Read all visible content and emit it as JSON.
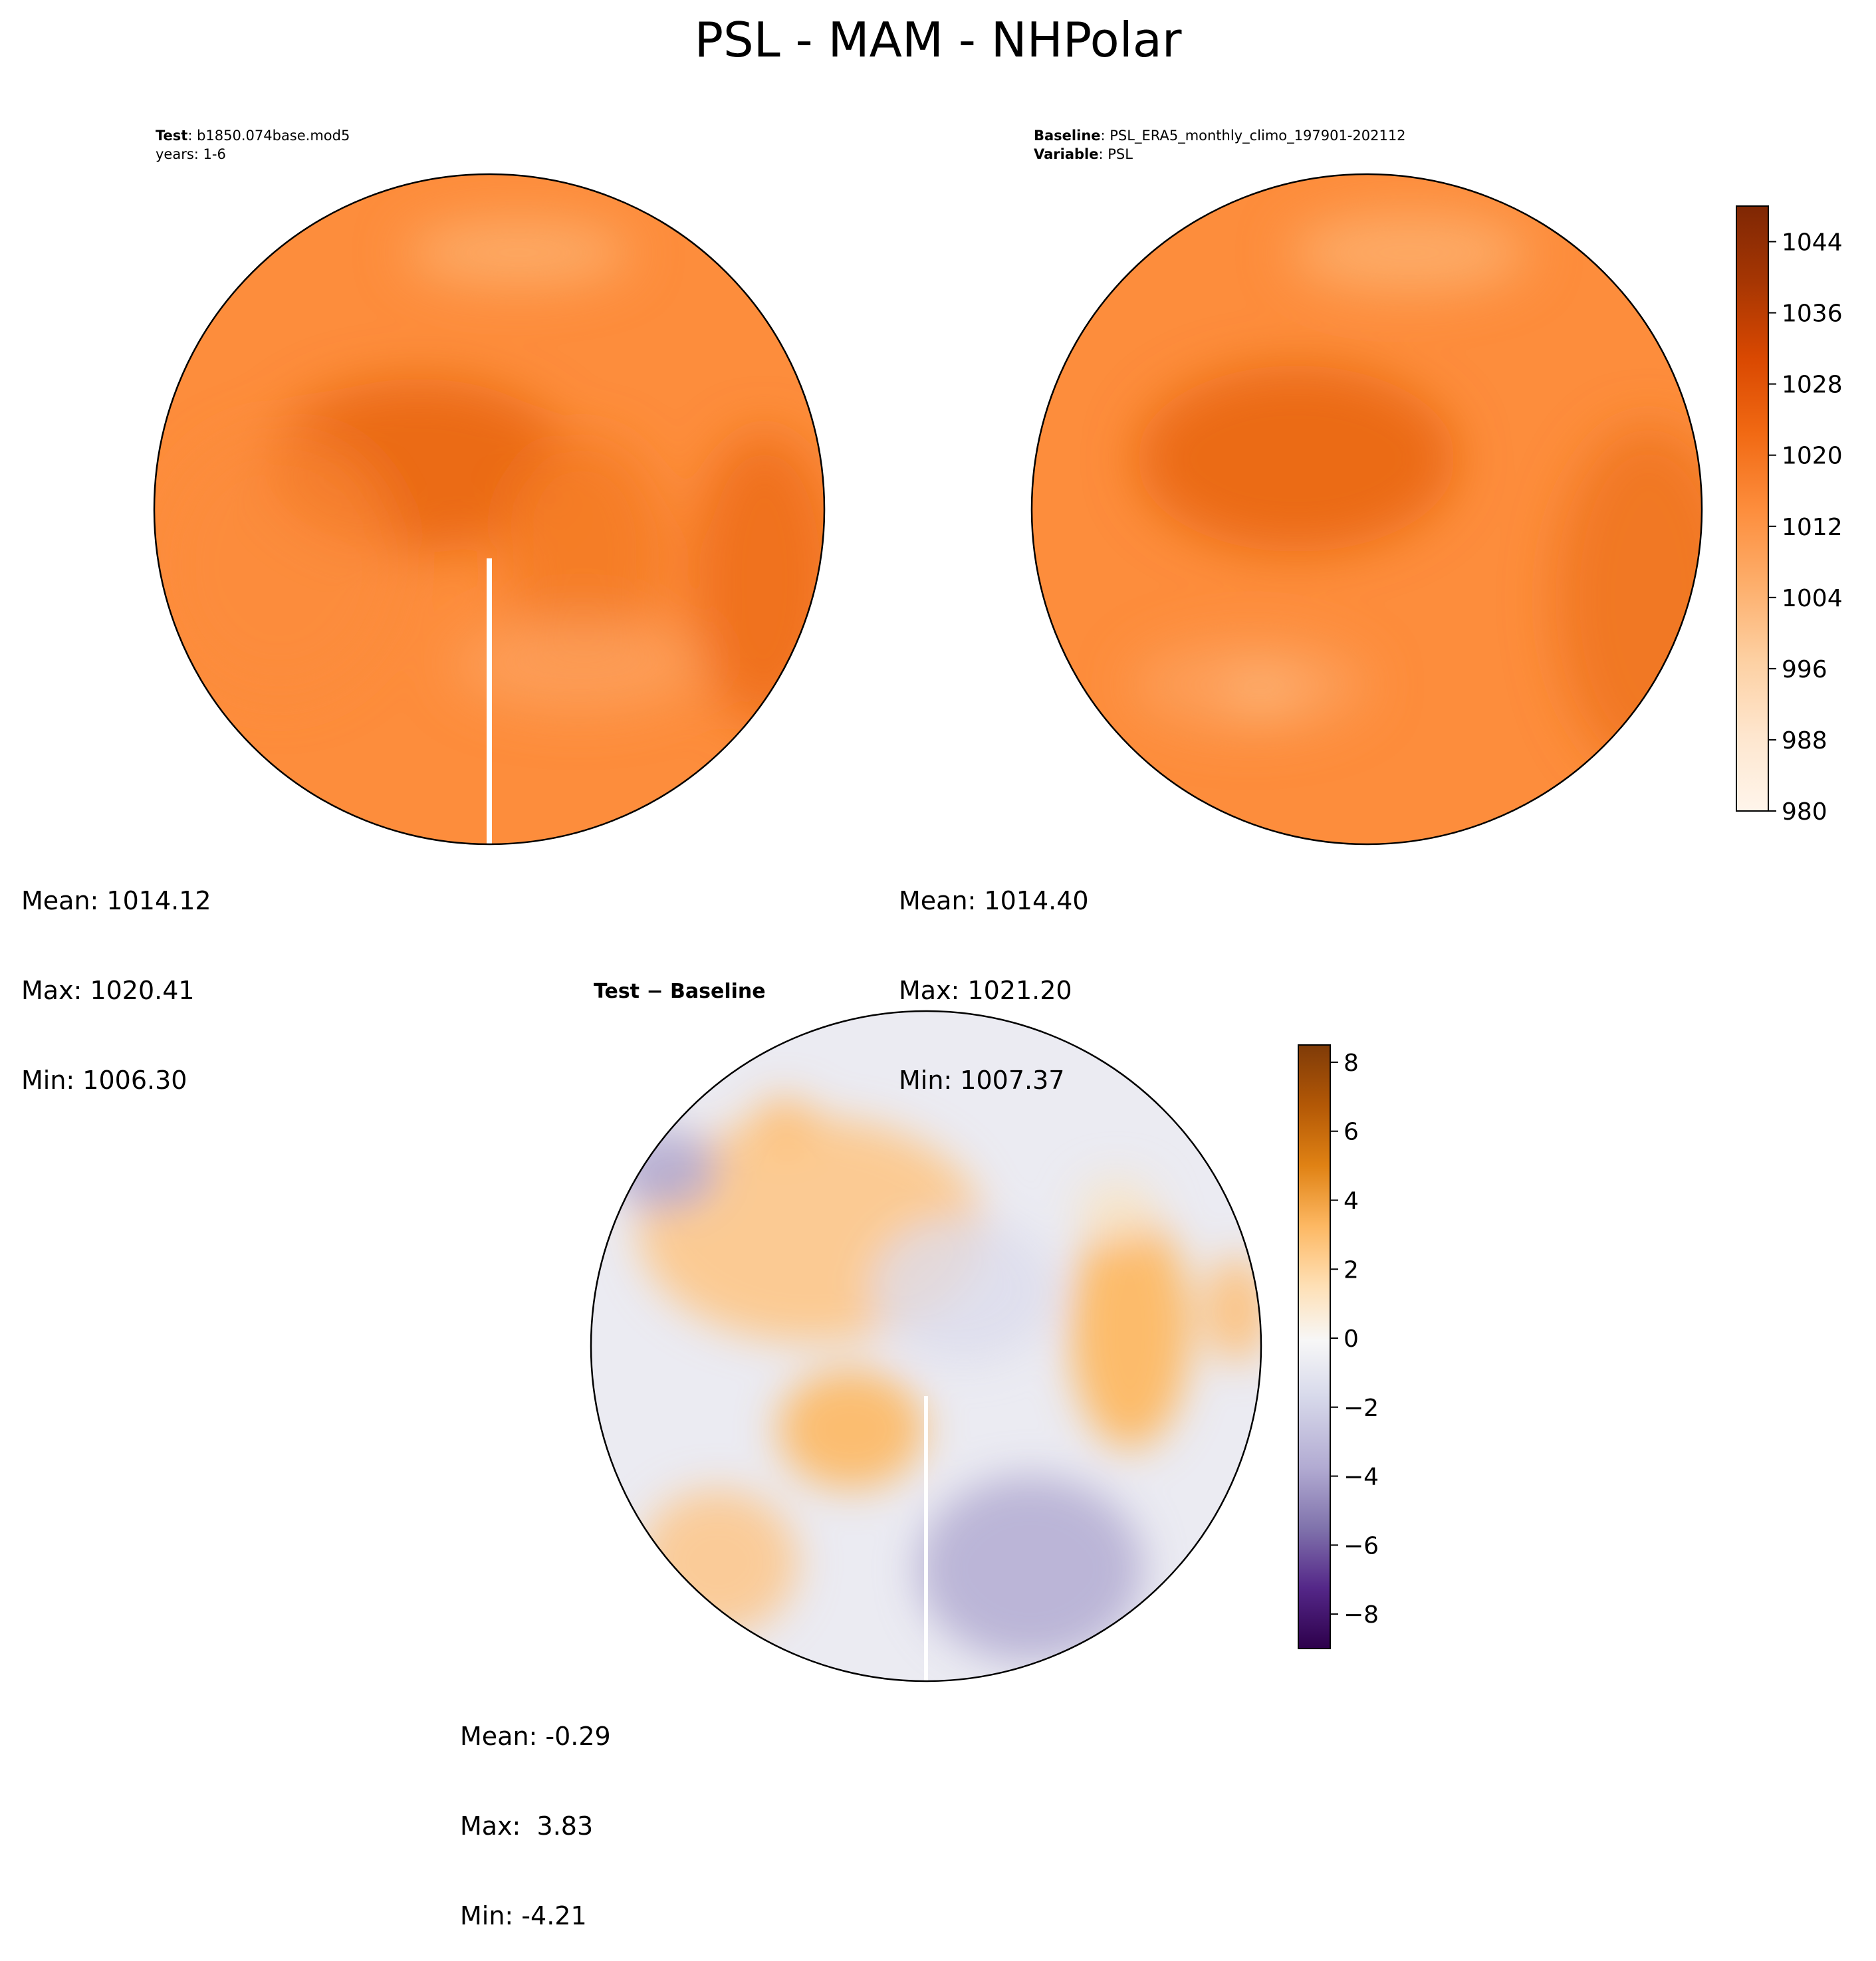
{
  "figure": {
    "title": "PSL - MAM - NHPolar"
  },
  "colors": {
    "seq_cmap": [
      "#fff5eb",
      "#fee6ce",
      "#fdd0a2",
      "#fdae6b",
      "#fd8d3c",
      "#f16913",
      "#d94801",
      "#a63603",
      "#7f2704"
    ],
    "div_cmap": [
      "#2d004b",
      "#542788",
      "#8073ac",
      "#b2abd2",
      "#d8daeb",
      "#f7f7f7",
      "#fee0b6",
      "#fdb863",
      "#e08214",
      "#b35806",
      "#7f3b08"
    ],
    "coastline": "#000000"
  },
  "panels": {
    "test": {
      "label_bold": "Test",
      "label_value": ": b1850.074base.mod5",
      "line2": "years: 1-6",
      "mean": "Mean: 1014.12",
      "max": "Max: 1020.41",
      "min": "Min: 1006.30"
    },
    "baseline": {
      "label_bold": "Baseline",
      "label_value": ": PSL_ERA5_monthly_climo_197901-202112",
      "line2_bold": "Variable",
      "line2_value": ": PSL",
      "mean": "Mean: 1014.40",
      "max": "Max: 1021.20",
      "min": "Min: 1007.37"
    },
    "diff": {
      "title": "Test − Baseline",
      "mean": "Mean: -0.29",
      "max": "Max:  3.83",
      "min": "Min: -4.21"
    }
  },
  "chart_data": [
    {
      "type": "heatmap",
      "colorbar": {
        "range": [
          980,
          1048
        ],
        "ticks": [
          980,
          988,
          996,
          1004,
          1012,
          1020,
          1028,
          1036,
          1044
        ],
        "tick_labels": [
          "980",
          "988",
          "996",
          "1004",
          "1012",
          "1020",
          "1028",
          "1036",
          "1044"
        ]
      }
    },
    {
      "type": "heatmap",
      "colorbar": {
        "range": [
          -9,
          8.5
        ],
        "ticks": [
          -8,
          -6,
          -4,
          -2,
          0,
          2,
          4,
          6,
          8
        ],
        "tick_labels": [
          "−8",
          "−6",
          "−4",
          "−2",
          "0",
          "2",
          "4",
          "6",
          "8"
        ]
      }
    }
  ]
}
